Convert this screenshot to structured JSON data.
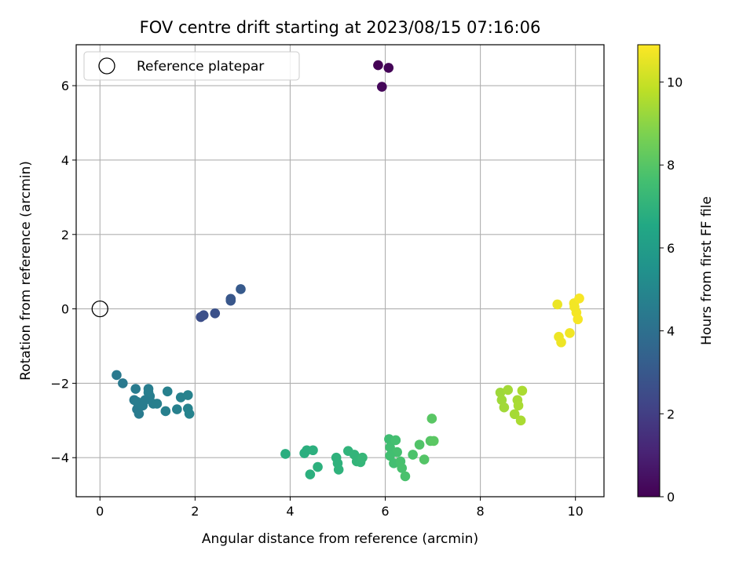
{
  "chart_data": {
    "type": "scatter",
    "title": "FOV centre drift starting at 2023/08/15 07:16:06",
    "xlabel": "Angular distance from reference (arcmin)",
    "ylabel": "Rotation from reference (arcmin)",
    "xlim": [
      -0.5,
      10.6
    ],
    "ylim": [
      -5.05,
      7.1
    ],
    "xticks": [
      0,
      2,
      4,
      6,
      8,
      10
    ],
    "yticks": [
      -4,
      -2,
      0,
      2,
      4,
      6
    ],
    "grid": true,
    "legend": {
      "position": "upper-left",
      "entries": [
        "Reference platepar"
      ]
    },
    "reference_point": {
      "x": 0,
      "y": 0,
      "label": "Reference platepar",
      "marker": "open-circle"
    },
    "colorbar": {
      "label": "Hours from first FF file",
      "range": [
        0,
        10.9
      ],
      "ticks": [
        0,
        2,
        4,
        6,
        8,
        10
      ],
      "colormap": "viridis"
    },
    "series": [
      {
        "x": [
          5.85,
          6.07,
          5.93,
          2.12,
          2.18,
          2.42,
          2.75,
          2.75,
          2.96,
          0.35,
          0.48,
          0.72,
          0.78,
          0.82,
          0.75,
          0.78,
          0.9,
          1.02,
          1.05,
          1.12,
          1.2,
          1.38,
          1.42,
          1.62,
          1.7,
          1.85,
          1.85,
          1.88,
          1.02,
          0.95,
          3.9,
          4.3,
          4.35,
          4.42,
          4.48,
          4.58,
          4.97,
          5.0,
          5.02,
          5.22,
          5.35,
          5.4,
          5.48,
          5.52,
          6.08,
          6.1,
          6.18,
          6.22,
          6.25,
          6.32,
          6.35,
          6.42,
          6.58,
          6.72,
          6.82,
          6.95,
          6.98,
          7.02,
          6.1,
          8.42,
          8.45,
          8.5,
          8.58,
          8.72,
          8.78,
          8.8,
          8.85,
          8.88,
          9.62,
          9.65,
          9.7,
          9.88,
          9.97,
          10.02,
          10.05,
          10.08,
          9.98
        ],
        "y": [
          6.55,
          6.48,
          5.97,
          -0.22,
          -0.17,
          -0.12,
          0.22,
          0.27,
          0.53,
          -1.78,
          -2.0,
          -2.45,
          -2.7,
          -2.82,
          -2.15,
          -2.5,
          -2.6,
          -2.15,
          -2.35,
          -2.55,
          -2.55,
          -2.75,
          -2.22,
          -2.7,
          -2.38,
          -2.32,
          -2.68,
          -2.82,
          -2.25,
          -2.45,
          -3.9,
          -3.88,
          -3.8,
          -4.45,
          -3.8,
          -4.25,
          -4.0,
          -4.15,
          -4.32,
          -3.82,
          -3.92,
          -4.1,
          -4.12,
          -4.0,
          -3.5,
          -3.72,
          -4.15,
          -3.53,
          -3.85,
          -4.1,
          -4.28,
          -4.5,
          -3.92,
          -3.65,
          -4.05,
          -3.55,
          -2.95,
          -3.55,
          -3.95,
          -2.25,
          -2.45,
          -2.65,
          -2.18,
          -2.83,
          -2.45,
          -2.6,
          -3.0,
          -2.2,
          0.12,
          -0.75,
          -0.9,
          -0.65,
          0.15,
          -0.1,
          -0.28,
          0.28,
          0.05
        ],
        "hours": [
          0.0,
          0.1,
          0.2,
          2.6,
          2.65,
          2.7,
          2.9,
          2.95,
          3.05,
          4.4,
          4.42,
          4.44,
          4.46,
          4.48,
          4.5,
          4.52,
          4.55,
          4.58,
          4.6,
          4.62,
          4.65,
          4.68,
          4.7,
          4.72,
          4.75,
          4.78,
          4.8,
          4.82,
          4.6,
          4.55,
          6.8,
          6.82,
          6.84,
          6.86,
          6.88,
          6.9,
          6.95,
          6.98,
          7.0,
          7.05,
          7.1,
          7.12,
          7.15,
          7.2,
          7.5,
          7.55,
          7.6,
          7.62,
          7.65,
          7.7,
          7.72,
          7.75,
          7.8,
          7.9,
          7.95,
          8.0,
          8.05,
          8.1,
          7.58,
          9.3,
          9.32,
          9.35,
          9.38,
          9.42,
          9.45,
          9.48,
          9.5,
          9.52,
          10.6,
          10.62,
          10.65,
          10.7,
          10.72,
          10.75,
          10.78,
          10.8,
          10.72
        ]
      }
    ]
  }
}
